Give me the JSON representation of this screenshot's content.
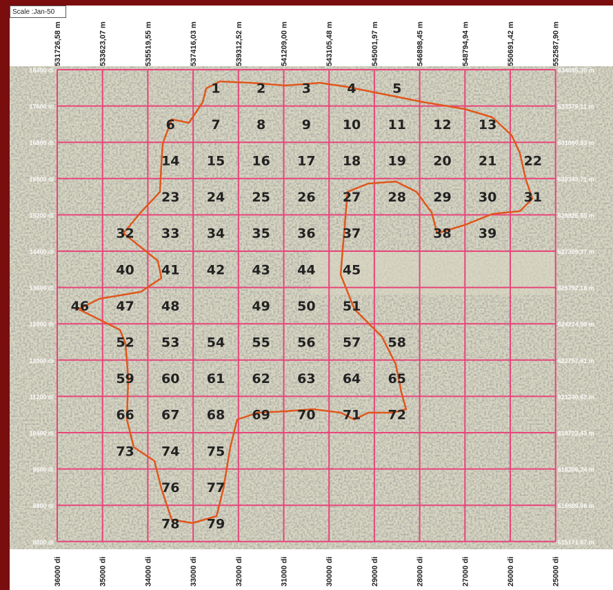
{
  "header_label": "Scale  :Jan-50",
  "top_coords": [
    "531726,58 m",
    "533623,07 m",
    "535519,55 m",
    "537416,03 m",
    "539312,52 m",
    "541209,00 m",
    "543105,48 m",
    "545001,97 m",
    "546898,45 m",
    "548794,94 m",
    "550691,42 m",
    "552587,90 m"
  ],
  "bottom_coords": [
    "36000 di",
    "35000 di",
    "34000 di",
    "33000 di",
    "32000 di",
    "31000 di",
    "30000 di",
    "29000 di",
    "28000 di",
    "27000 di",
    "26000 di",
    "25000 di"
  ],
  "left_coords": [
    "18400 di",
    "17600 di",
    "16800 di",
    "16000 di",
    "15200 di",
    "14400 di",
    "13600 di",
    "12800 di",
    "12000 di",
    "11200 di",
    "10400 di",
    "9600 di",
    "8800 di",
    "8000 di"
  ],
  "right_coords": [
    "634095,30 m",
    "633379,11 m",
    "631860,93 m",
    "630343,71 m",
    "628826,55 m",
    "627309,37 m",
    "625792,18 m",
    "624274,99 m",
    "622757,81 m",
    "621240,62 m",
    "619723,43 m",
    "618206,24 m",
    "616689,06 m",
    "615171,87 m"
  ],
  "cells": [
    {
      "n": "1",
      "c": 3,
      "r": 0
    },
    {
      "n": "2",
      "c": 4,
      "r": 0
    },
    {
      "n": "3",
      "c": 5,
      "r": 0
    },
    {
      "n": "4",
      "c": 6,
      "r": 0
    },
    {
      "n": "5",
      "c": 7,
      "r": 0
    },
    {
      "n": "6",
      "c": 2,
      "r": 1
    },
    {
      "n": "7",
      "c": 3,
      "r": 1
    },
    {
      "n": "8",
      "c": 4,
      "r": 1
    },
    {
      "n": "9",
      "c": 5,
      "r": 1
    },
    {
      "n": "10",
      "c": 6,
      "r": 1
    },
    {
      "n": "11",
      "c": 7,
      "r": 1
    },
    {
      "n": "12",
      "c": 8,
      "r": 1
    },
    {
      "n": "13",
      "c": 9,
      "r": 1
    },
    {
      "n": "14",
      "c": 2,
      "r": 2
    },
    {
      "n": "15",
      "c": 3,
      "r": 2
    },
    {
      "n": "16",
      "c": 4,
      "r": 2
    },
    {
      "n": "17",
      "c": 5,
      "r": 2
    },
    {
      "n": "18",
      "c": 6,
      "r": 2
    },
    {
      "n": "19",
      "c": 7,
      "r": 2
    },
    {
      "n": "20",
      "c": 8,
      "r": 2
    },
    {
      "n": "21",
      "c": 9,
      "r": 2
    },
    {
      "n": "22",
      "c": 10,
      "r": 2
    },
    {
      "n": "23",
      "c": 2,
      "r": 3
    },
    {
      "n": "24",
      "c": 3,
      "r": 3
    },
    {
      "n": "25",
      "c": 4,
      "r": 3
    },
    {
      "n": "26",
      "c": 5,
      "r": 3
    },
    {
      "n": "27",
      "c": 6,
      "r": 3
    },
    {
      "n": "28",
      "c": 7,
      "r": 3
    },
    {
      "n": "29",
      "c": 8,
      "r": 3
    },
    {
      "n": "30",
      "c": 9,
      "r": 3
    },
    {
      "n": "31",
      "c": 10,
      "r": 3
    },
    {
      "n": "32",
      "c": 1,
      "r": 4
    },
    {
      "n": "33",
      "c": 2,
      "r": 4
    },
    {
      "n": "34",
      "c": 3,
      "r": 4
    },
    {
      "n": "35",
      "c": 4,
      "r": 4
    },
    {
      "n": "36",
      "c": 5,
      "r": 4
    },
    {
      "n": "37",
      "c": 6,
      "r": 4
    },
    {
      "n": "38",
      "c": 8,
      "r": 4
    },
    {
      "n": "39",
      "c": 9,
      "r": 4
    },
    {
      "n": "40",
      "c": 1,
      "r": 5
    },
    {
      "n": "41",
      "c": 2,
      "r": 5
    },
    {
      "n": "42",
      "c": 3,
      "r": 5
    },
    {
      "n": "43",
      "c": 4,
      "r": 5
    },
    {
      "n": "44",
      "c": 5,
      "r": 5
    },
    {
      "n": "45",
      "c": 6,
      "r": 5
    },
    {
      "n": "46",
      "c": 0,
      "r": 6
    },
    {
      "n": "47",
      "c": 1,
      "r": 6
    },
    {
      "n": "48",
      "c": 2,
      "r": 6
    },
    {
      "n": "49",
      "c": 4,
      "r": 6
    },
    {
      "n": "50",
      "c": 5,
      "r": 6
    },
    {
      "n": "51",
      "c": 6,
      "r": 6
    },
    {
      "n": "52",
      "c": 1,
      "r": 7
    },
    {
      "n": "53",
      "c": 2,
      "r": 7
    },
    {
      "n": "54",
      "c": 3,
      "r": 7
    },
    {
      "n": "55",
      "c": 4,
      "r": 7
    },
    {
      "n": "56",
      "c": 5,
      "r": 7
    },
    {
      "n": "57",
      "c": 6,
      "r": 7
    },
    {
      "n": "58",
      "c": 7,
      "r": 7
    },
    {
      "n": "59",
      "c": 1,
      "r": 8
    },
    {
      "n": "60",
      "c": 2,
      "r": 8
    },
    {
      "n": "61",
      "c": 3,
      "r": 8
    },
    {
      "n": "62",
      "c": 4,
      "r": 8
    },
    {
      "n": "63",
      "c": 5,
      "r": 8
    },
    {
      "n": "64",
      "c": 6,
      "r": 8
    },
    {
      "n": "65",
      "c": 7,
      "r": 8
    },
    {
      "n": "66",
      "c": 1,
      "r": 9
    },
    {
      "n": "67",
      "c": 2,
      "r": 9
    },
    {
      "n": "68",
      "c": 3,
      "r": 9
    },
    {
      "n": "69",
      "c": 4,
      "r": 9
    },
    {
      "n": "70",
      "c": 5,
      "r": 9
    },
    {
      "n": "71",
      "c": 6,
      "r": 9
    },
    {
      "n": "72",
      "c": 7,
      "r": 9
    },
    {
      "n": "73",
      "c": 1,
      "r": 10
    },
    {
      "n": "74",
      "c": 2,
      "r": 10
    },
    {
      "n": "75",
      "c": 3,
      "r": 10
    },
    {
      "n": "76",
      "c": 2,
      "r": 11
    },
    {
      "n": "77",
      "c": 3,
      "r": 11
    },
    {
      "n": "78",
      "c": 2,
      "r": 12
    },
    {
      "n": "79",
      "c": 3,
      "r": 12
    }
  ],
  "colors": {
    "grid": "#e8457a",
    "boundary": "#e0561c",
    "map_dark": "#6d6d64",
    "map_light": "#d8d6c2",
    "page_bg": "#7a0d0d"
  }
}
